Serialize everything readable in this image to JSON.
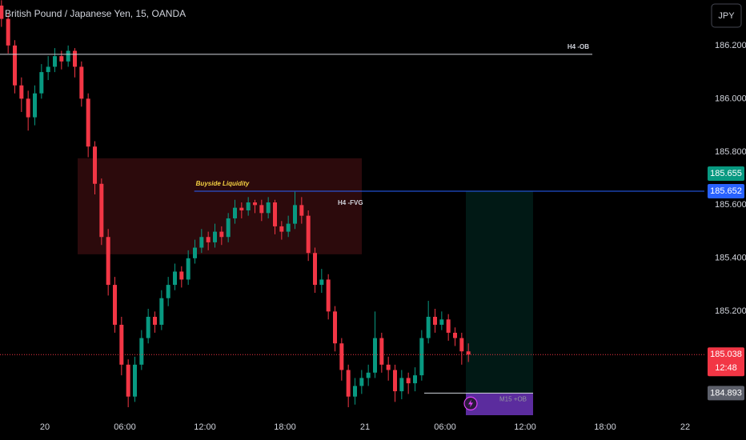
{
  "chart_data": {
    "type": "candlestick",
    "title": "British Pound / Japanese Yen, 15, OANDA",
    "currency": "JPY",
    "up_color": "#089981",
    "down_color": "#f23645",
    "grid": false,
    "xlim": [
      -3.36,
      49.44
    ],
    "ylim": [
      184.807,
      186.371
    ],
    "xticks": [
      {
        "value": 0,
        "label": "20"
      },
      {
        "value": 6,
        "label": "06:00"
      },
      {
        "value": 12,
        "label": "12:00"
      },
      {
        "value": 18,
        "label": "18:00"
      },
      {
        "value": 24,
        "label": "21"
      },
      {
        "value": 30,
        "label": "06:00"
      },
      {
        "value": 36,
        "label": "12:00"
      },
      {
        "value": 42,
        "label": "18:00"
      },
      {
        "value": 48,
        "label": "22"
      }
    ],
    "yticks": [
      {
        "value": 186.2,
        "label": "186.200"
      },
      {
        "value": 186.0,
        "label": "186.000"
      },
      {
        "value": 185.8,
        "label": "185.800"
      },
      {
        "value": 185.6,
        "label": "185.600"
      },
      {
        "value": 185.4,
        "label": "185.400"
      },
      {
        "value": 185.2,
        "label": "185.200"
      }
    ],
    "x": [
      -3.25,
      -2.75,
      -2.25,
      -1.75,
      -1.25,
      -0.75,
      -0.25,
      0.25,
      0.75,
      1.25,
      1.75,
      2.25,
      2.75,
      3.25,
      3.75,
      4.25,
      4.75,
      5.25,
      5.75,
      6.25,
      6.75,
      7.25,
      7.75,
      8.25,
      8.75,
      9.25,
      9.75,
      10.25,
      10.75,
      11.25,
      11.75,
      12.25,
      12.75,
      13.25,
      13.75,
      14.25,
      14.75,
      15.25,
      15.75,
      16.25,
      16.75,
      17.25,
      17.75,
      18.25,
      18.75,
      19.25,
      19.75,
      20.25,
      20.75,
      21.25,
      21.75,
      22.25,
      22.75,
      23.25,
      23.75,
      24.25,
      24.75,
      25.25,
      25.75,
      26.25,
      26.75,
      27.25,
      27.75,
      28.25,
      28.75,
      29.25,
      29.75,
      30.25,
      30.75,
      31.25,
      31.75
    ],
    "open": [
      186.35,
      186.3,
      186.2,
      186.05,
      186.0,
      185.93,
      186.02,
      186.1,
      186.12,
      186.16,
      186.14,
      186.18,
      186.12,
      186.0,
      185.82,
      185.68,
      185.48,
      185.3,
      185.15,
      185.0,
      184.88,
      185.0,
      185.1,
      185.18,
      185.15,
      185.25,
      185.3,
      185.35,
      185.32,
      185.4,
      185.44,
      185.48,
      185.46,
      185.5,
      185.48,
      185.55,
      185.59,
      185.58,
      185.61,
      185.6,
      185.57,
      185.61,
      185.52,
      185.5,
      185.53,
      185.6,
      185.56,
      185.42,
      185.3,
      185.32,
      185.2,
      185.08,
      184.98,
      184.88,
      184.92,
      184.95,
      184.97,
      185.1,
      185.0,
      184.98,
      184.9,
      184.95,
      184.93,
      184.96,
      185.1,
      185.18,
      185.15,
      185.17,
      185.12,
      185.1,
      185.05
    ],
    "high": [
      186.37,
      186.32,
      186.22,
      186.08,
      186.03,
      186.05,
      186.13,
      186.16,
      186.19,
      186.18,
      186.2,
      186.19,
      186.14,
      186.02,
      185.84,
      185.7,
      185.51,
      185.33,
      185.18,
      185.02,
      185.03,
      185.13,
      185.21,
      185.2,
      185.28,
      185.33,
      185.38,
      185.37,
      185.43,
      185.47,
      185.51,
      185.5,
      185.53,
      185.52,
      185.57,
      185.62,
      185.61,
      185.63,
      185.62,
      185.62,
      185.63,
      185.62,
      185.54,
      185.56,
      185.65,
      185.63,
      185.58,
      185.44,
      185.36,
      185.34,
      185.22,
      185.1,
      185.0,
      184.95,
      184.98,
      185.0,
      185.2,
      185.12,
      185.03,
      185.0,
      184.98,
      184.97,
      184.99,
      185.13,
      185.24,
      185.21,
      185.2,
      185.19,
      185.14,
      185.12,
      185.08
    ],
    "low": [
      186.27,
      186.17,
      186.02,
      185.95,
      185.88,
      185.9,
      186.0,
      186.07,
      186.1,
      186.11,
      186.12,
      186.08,
      185.97,
      185.78,
      185.64,
      185.45,
      185.26,
      185.12,
      184.96,
      184.84,
      184.86,
      184.98,
      185.08,
      185.12,
      185.13,
      185.22,
      185.28,
      185.29,
      185.3,
      185.38,
      185.42,
      185.43,
      185.44,
      185.45,
      185.46,
      185.53,
      185.55,
      185.56,
      185.57,
      185.54,
      185.55,
      185.49,
      185.47,
      185.48,
      185.51,
      185.53,
      185.39,
      185.27,
      185.27,
      185.17,
      185.05,
      184.94,
      184.84,
      184.85,
      184.89,
      184.92,
      184.95,
      184.97,
      184.94,
      184.86,
      184.87,
      184.89,
      184.9,
      184.94,
      185.08,
      185.12,
      185.13,
      185.09,
      185.07,
      185.0,
      185.01
    ],
    "close": [
      186.3,
      186.2,
      186.05,
      186.0,
      185.93,
      186.02,
      186.1,
      186.12,
      186.16,
      186.14,
      186.18,
      186.12,
      186.0,
      185.82,
      185.68,
      185.48,
      185.3,
      185.15,
      185.0,
      184.88,
      185.0,
      185.1,
      185.18,
      185.15,
      185.25,
      185.3,
      185.35,
      185.32,
      185.4,
      185.44,
      185.48,
      185.46,
      185.5,
      185.48,
      185.55,
      185.59,
      185.58,
      185.61,
      185.6,
      185.57,
      185.61,
      185.52,
      185.5,
      185.53,
      185.6,
      185.56,
      185.42,
      185.3,
      185.32,
      185.2,
      185.08,
      184.98,
      184.88,
      184.92,
      184.95,
      184.97,
      185.1,
      185.0,
      184.98,
      184.9,
      184.95,
      184.93,
      184.96,
      185.1,
      185.18,
      185.15,
      185.17,
      185.12,
      185.1,
      185.05,
      185.038
    ],
    "ob_line": {
      "label": "H4 -OB",
      "y": 186.167,
      "x": [
        -3.36,
        41.04
      ]
    },
    "fvg_box": {
      "label": "H4 -FVG",
      "x": [
        2.46,
        23.76
      ],
      "y": [
        185.415,
        185.776
      ]
    },
    "liquidity_line": {
      "label": "Buyside Liquidity",
      "y": 185.652,
      "x": [
        11.2,
        49.44
      ]
    },
    "target_zone": {
      "x": [
        31.56,
        36.6
      ],
      "y": [
        184.893,
        185.652
      ]
    },
    "m15_ob": {
      "label": "M15 +OB",
      "x": [
        31.56,
        36.6
      ],
      "y": [
        184.81,
        184.893
      ],
      "line_x": [
        28.44,
        36.6
      ]
    },
    "price_markers": [
      {
        "value": 185.655,
        "color": "#089981"
      },
      {
        "value": 185.652,
        "color": "#2962ff"
      },
      {
        "value": 184.893,
        "color": "#5d606b"
      }
    ],
    "last_price": {
      "value": 185.038,
      "countdown": "12:48",
      "color": "#f23645"
    }
  }
}
